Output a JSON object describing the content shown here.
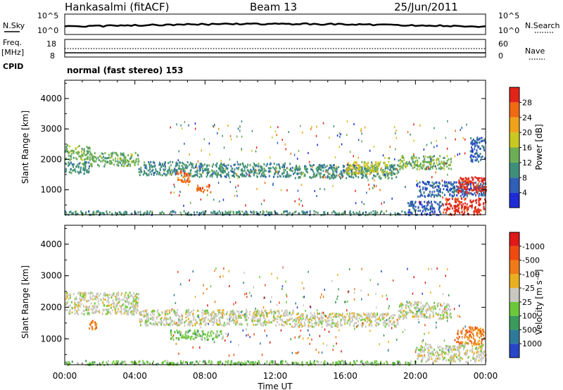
{
  "header": {
    "station": "Hankasalmi (fitACF)",
    "beam": "Beam 13",
    "date": "25/Jun/2011"
  },
  "noise_panel": {
    "left_label": "N.Sky",
    "right_label": "N.Search",
    "ticks": [
      "10^5",
      "10^0"
    ]
  },
  "freq_panel": {
    "left_label_top": "Freq.",
    "left_label_unit": "[MHz]",
    "left_ticks": [
      "18",
      "8"
    ],
    "right_label": "Nave",
    "right_ticks": [
      "60",
      "0"
    ]
  },
  "cpid": {
    "label": "CPID",
    "value": "normal (fast stereo) 153"
  },
  "axes": {
    "x_ticks": [
      "00:00",
      "04:00",
      "08:00",
      "12:00",
      "16:00",
      "20:00",
      "00:00"
    ],
    "x_label": "Time UT",
    "y_ticks": [
      "1000",
      "2000",
      "3000",
      "4000"
    ],
    "y_label": "Slant Range [km]"
  },
  "chart_data": [
    {
      "type": "heatmap",
      "title": "",
      "xlabel": "Time UT",
      "ylabel": "Slant Range [km]",
      "xlim": [
        0,
        24
      ],
      "ylim": [
        180,
        4600
      ],
      "colorbar": {
        "label": "Power [dB]",
        "ticks": [
          "4",
          "8",
          "12",
          "16",
          "20",
          "24",
          "28"
        ],
        "colors": [
          "#1f2bd6",
          "#2f5fb6",
          "#3f8e7a",
          "#6cae55",
          "#c9c820",
          "#f0a21a",
          "#f06a12",
          "#e0241a"
        ]
      },
      "bands": [
        {
          "t0": 0.0,
          "t1": 1.4,
          "r0": 2000,
          "r1": 2500,
          "level": 3
        },
        {
          "t0": 0.0,
          "t1": 1.4,
          "r0": 1550,
          "r1": 1950,
          "level": 2
        },
        {
          "t0": 1.4,
          "t1": 4.2,
          "r0": 1800,
          "r1": 2250,
          "level": 3
        },
        {
          "t0": 4.2,
          "t1": 7.2,
          "r0": 1500,
          "r1": 1950,
          "level": 2
        },
        {
          "t0": 6.3,
          "t1": 7.1,
          "r0": 1250,
          "r1": 1650,
          "level": 6
        },
        {
          "t0": 7.5,
          "t1": 8.3,
          "r0": 950,
          "r1": 1200,
          "level": 6
        },
        {
          "t0": 7.2,
          "t1": 13.0,
          "r0": 1450,
          "r1": 1900,
          "level": 2
        },
        {
          "t0": 13.0,
          "t1": 19.0,
          "r0": 1400,
          "r1": 1850,
          "level": 2
        },
        {
          "t0": 16.0,
          "t1": 18.5,
          "r0": 1550,
          "r1": 1950,
          "level": 4
        },
        {
          "t0": 19.0,
          "t1": 22.0,
          "r0": 1700,
          "r1": 2150,
          "level": 3
        },
        {
          "t0": 20.0,
          "t1": 24.0,
          "r0": 800,
          "r1": 1300,
          "level": 1
        },
        {
          "t0": 22.3,
          "t1": 24.0,
          "r0": 900,
          "r1": 1450,
          "level": 7
        },
        {
          "t0": 21.5,
          "t1": 24.0,
          "r0": 200,
          "r1": 750,
          "level": 7
        },
        {
          "t0": 19.5,
          "t1": 21.5,
          "r0": 200,
          "r1": 650,
          "level": 1
        },
        {
          "t0": 0.0,
          "t1": 19.5,
          "r0": 200,
          "r1": 330,
          "level": 2
        },
        {
          "t0": 23.1,
          "t1": 24.0,
          "r0": 1950,
          "r1": 2750,
          "level": 1
        }
      ]
    },
    {
      "type": "heatmap",
      "title": "",
      "xlabel": "Time UT",
      "ylabel": "Slant Range [km]",
      "xlim": [
        0,
        24
      ],
      "ylim": [
        180,
        4600
      ],
      "colorbar": {
        "label": "Velocity [m s⁻¹]",
        "ticks": [
          "1000",
          "500",
          "100",
          "25",
          "-25",
          "-100",
          "-500",
          "-1000"
        ],
        "colors": [
          "#2746c8",
          "#2f7a9a",
          "#3a9b5a",
          "#6cc83a",
          "#c8c8c0",
          "#e8b020",
          "#f07a18",
          "#f04a10",
          "#e01818"
        ]
      },
      "bands": [
        {
          "t0": 0.0,
          "t1": 4.2,
          "r0": 1800,
          "r1": 2500,
          "level": 4
        },
        {
          "t0": 4.2,
          "t1": 13.0,
          "r0": 1450,
          "r1": 1950,
          "level": 4
        },
        {
          "t0": 13.0,
          "t1": 19.0,
          "r0": 1400,
          "r1": 1850,
          "level": 4
        },
        {
          "t0": 19.0,
          "t1": 22.0,
          "r0": 1650,
          "r1": 2200,
          "level": 4
        },
        {
          "t0": 22.3,
          "t1": 24.0,
          "r0": 850,
          "r1": 1400,
          "level": 6
        },
        {
          "t0": 20.0,
          "t1": 24.0,
          "r0": 300,
          "r1": 850,
          "level": 4
        },
        {
          "t0": 1.3,
          "t1": 1.8,
          "r0": 1300,
          "r1": 1600,
          "level": 6
        },
        {
          "t0": 0.0,
          "t1": 20.0,
          "r0": 200,
          "r1": 330,
          "level": 3
        },
        {
          "t0": 6.0,
          "t1": 9.0,
          "r0": 1000,
          "r1": 1300,
          "level": 3
        }
      ]
    }
  ]
}
